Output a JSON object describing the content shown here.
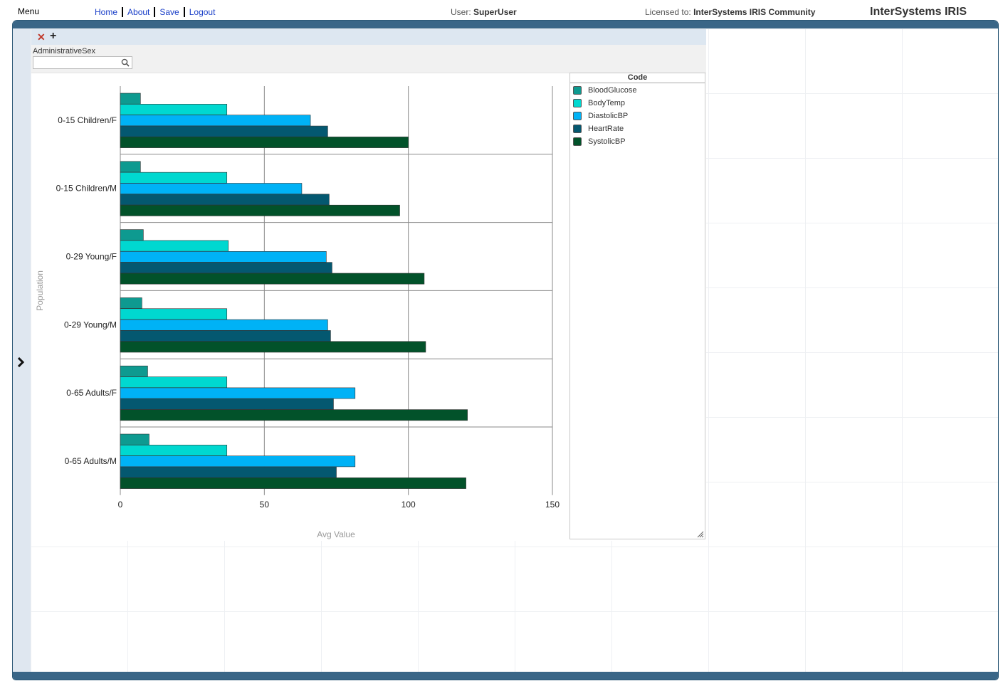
{
  "topbar": {
    "menu_label": "Menu",
    "nav": [
      "Home",
      "About",
      "Save",
      "Logout"
    ],
    "user_prefix": "User:",
    "user_name": "SuperUser",
    "license_prefix": "Licensed to:",
    "license_name": "InterSystems IRIS Community",
    "brand": "InterSystems IRIS"
  },
  "widget": {
    "filter_label": "AdministrativeSex",
    "filter_value": "",
    "filter_placeholder": ""
  },
  "legend": {
    "title": "Code"
  },
  "colors": {
    "frame": "#3a6687",
    "side_strip": "#dfe7f0",
    "widget_header": "#dde7f1",
    "close_icon": "#c0392b",
    "link": "#1a3fc8"
  },
  "icons": [
    "close-icon",
    "plus-icon",
    "search-icon",
    "chevron-right-icon",
    "resize-grip-icon"
  ],
  "chart_data": {
    "type": "bar",
    "orientation": "horizontal",
    "categories": [
      "0-15 Children/F",
      "0-15 Children/M",
      "0-29 Young/F",
      "0-29 Young/M",
      "0-65 Adults/F",
      "0-65 Adults/M"
    ],
    "series": [
      {
        "name": "BloodGlucose",
        "color": "#0e9a90",
        "values": [
          7,
          7,
          8,
          7.5,
          9.5,
          10
        ]
      },
      {
        "name": "BodyTemp",
        "color": "#00d8d0",
        "values": [
          37,
          37,
          37.5,
          37,
          37,
          37
        ]
      },
      {
        "name": "DiastolicBP",
        "color": "#00b2f6",
        "values": [
          66,
          63,
          71.5,
          72,
          81.5,
          81.5
        ]
      },
      {
        "name": "HeartRate",
        "color": "#045870",
        "values": [
          72,
          72.5,
          73.5,
          73,
          74,
          75
        ]
      },
      {
        "name": "SystolicBP",
        "color": "#02522a",
        "values": [
          100,
          97,
          105.5,
          106,
          120.5,
          120
        ]
      }
    ],
    "xlabel": "Avg Value",
    "ylabel": "Population",
    "xlim": [
      0,
      150
    ],
    "xticks": [
      0,
      50,
      100,
      150
    ],
    "legend_position": "right",
    "legend_title": "Code",
    "grid": true
  }
}
